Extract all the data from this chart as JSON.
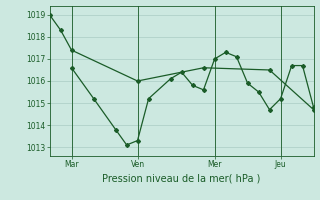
{
  "background_color": "#cce8e0",
  "grid_color": "#aaccc4",
  "line_color": "#1a5c28",
  "title": "Pression niveau de la mer( hPa )",
  "yticks": [
    1013,
    1014,
    1015,
    1016,
    1017,
    1018,
    1019
  ],
  "ylim": [
    1012.6,
    1019.4
  ],
  "day_labels": [
    "Mar",
    "Ven",
    "Mer",
    "Jeu"
  ],
  "day_positions": [
    0.083,
    0.333,
    0.625,
    0.875
  ],
  "series1_x": [
    0,
    0.042,
    0.083,
    0.333,
    0.583,
    0.833,
    1.0
  ],
  "series1_y": [
    1019.0,
    1018.3,
    1017.4,
    1016.0,
    1016.6,
    1016.5,
    1014.7
  ],
  "series2_x": [
    0.083,
    0.167,
    0.25,
    0.292,
    0.333,
    0.375,
    0.458,
    0.5,
    0.542,
    0.583,
    0.625,
    0.667,
    0.708,
    0.75,
    0.792,
    0.833,
    0.875,
    0.917,
    0.958,
    1.0
  ],
  "series2_y": [
    1016.6,
    1015.2,
    1013.8,
    1013.1,
    1013.3,
    1015.2,
    1016.1,
    1016.4,
    1015.8,
    1015.6,
    1017.0,
    1017.3,
    1017.1,
    1015.9,
    1015.5,
    1014.7,
    1015.2,
    1016.7,
    1016.7,
    1014.8
  ],
  "xlim": [
    0,
    1.0
  ],
  "title_fontsize": 7,
  "tick_fontsize": 5.5
}
